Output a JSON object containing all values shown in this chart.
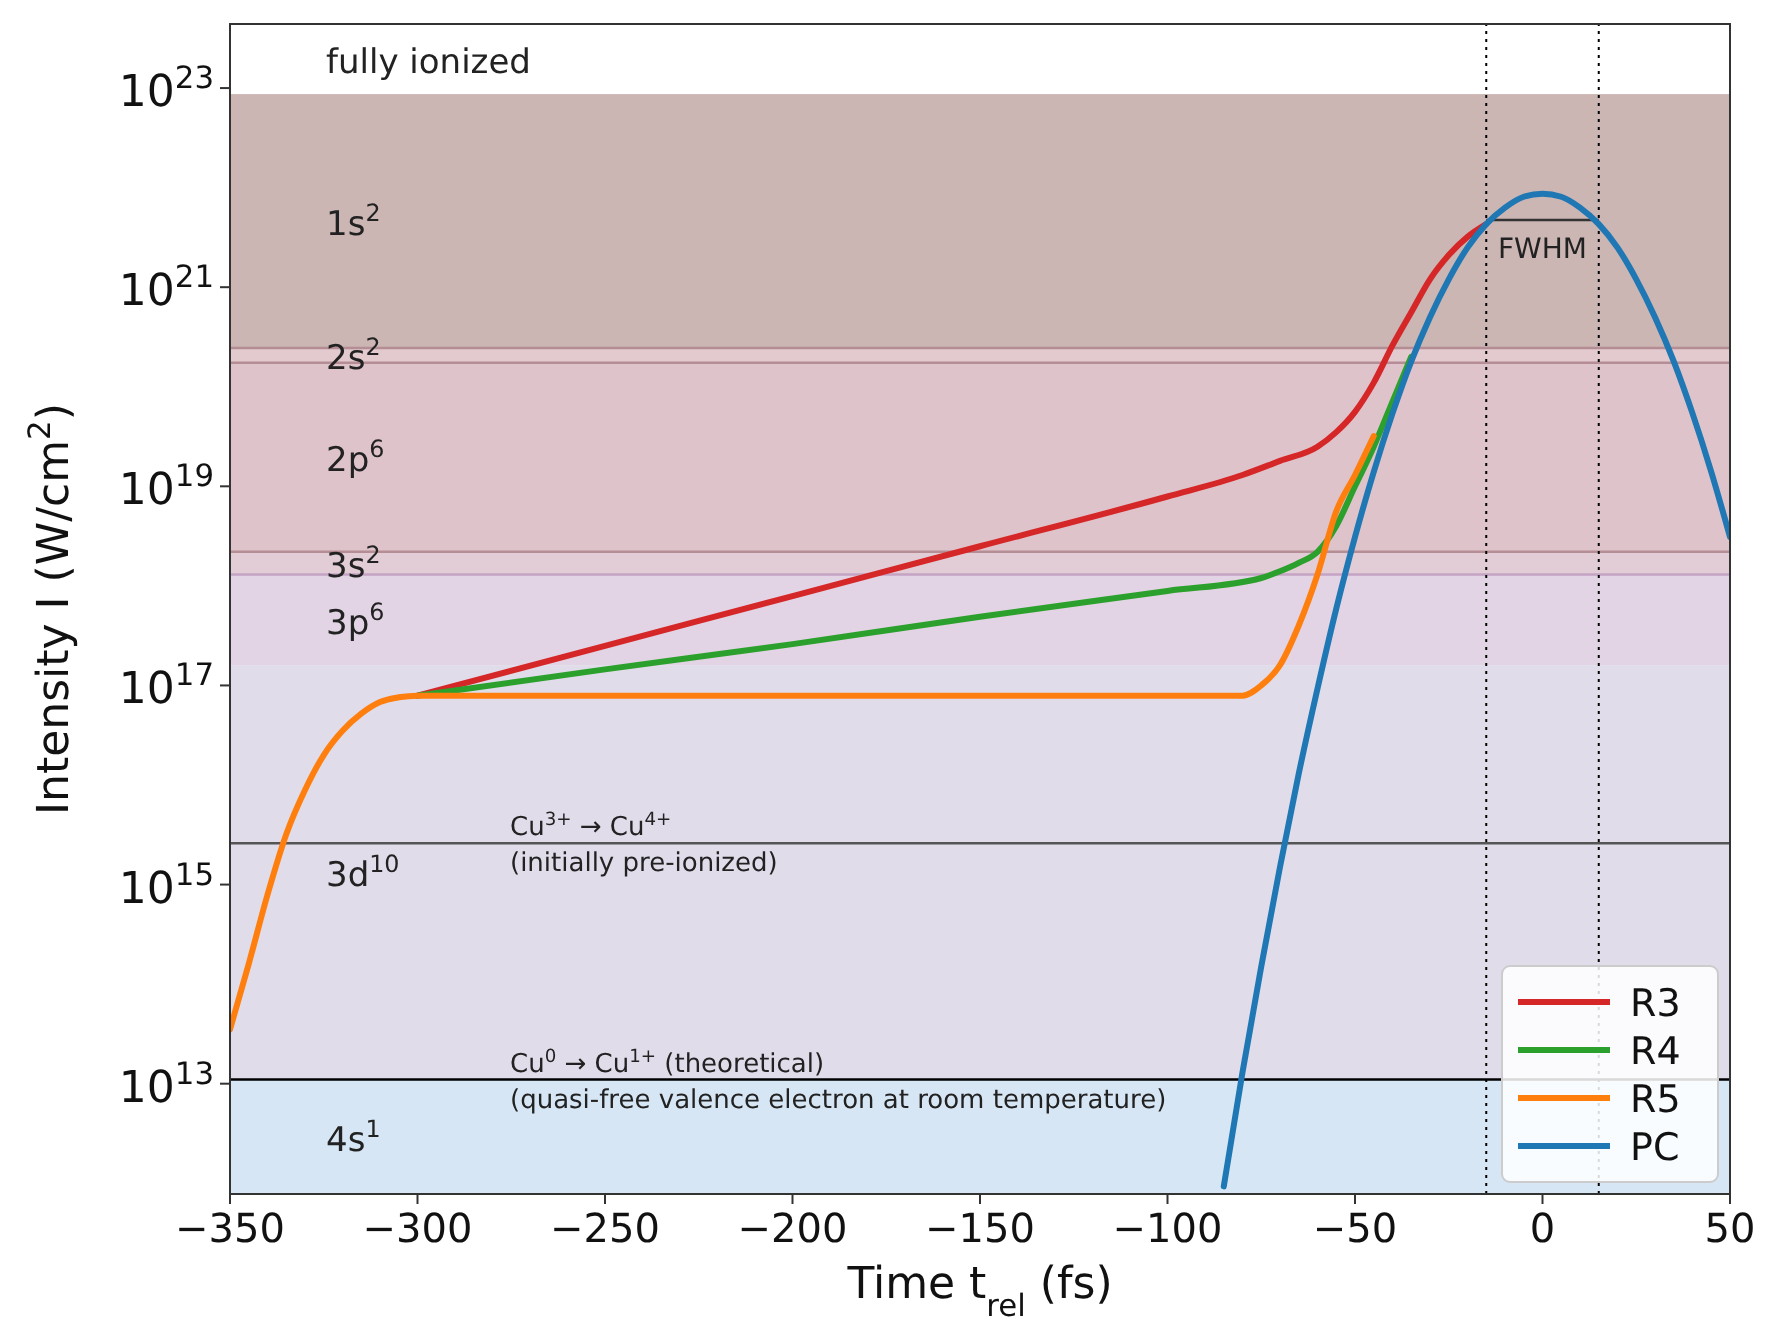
{
  "chart_data": {
    "type": "line",
    "xlabel": "Time t$_{rel}$ (fs)",
    "ylabel": "Intensity I (W/cm$^{2}$)",
    "log": "y",
    "grid": false,
    "legend": "bottom right",
    "line_style": "solid",
    "marker": "none",
    "xlim": [
      -350,
      50
    ],
    "ylim": [
      780000000000.0,
      4.4e+23
    ],
    "xticks": [
      {
        "value": -350,
        "label": "−350"
      },
      {
        "value": -300,
        "label": "−300"
      },
      {
        "value": -250,
        "label": "−250"
      },
      {
        "value": -200,
        "label": "−200"
      },
      {
        "value": -150,
        "label": "−150"
      },
      {
        "value": -100,
        "label": "−100"
      },
      {
        "value": -50,
        "label": "−50"
      },
      0,
      50
    ],
    "yticks": [
      {
        "value": 10000000000000.0,
        "label": "10$^{13}$"
      },
      {
        "value": 1000000000000000.0,
        "label": "10$^{15}$"
      },
      {
        "value": 1e+17,
        "label": "10$^{17}$"
      },
      {
        "value": 1e+19,
        "label": "10$^{19}$"
      },
      {
        "value": 1e+21,
        "label": "10$^{21}$"
      },
      {
        "value": 1e+23,
        "label": "10$^{23}$"
      }
    ],
    "bands": [
      {
        "axis": "y",
        "from": 2.45e+20,
        "to": 8.7e+22,
        "label": "1s$^{2}$",
        "color": "#cbb6b4"
      },
      {
        "axis": "y",
        "from": 1.74e+20,
        "to": 2.45e+20,
        "label": "2s$^{2}$",
        "color": "#e2cace"
      },
      {
        "axis": "y",
        "from": 2.2e+18,
        "to": 1.74e+20,
        "label": "2p$^{6}$",
        "color": "#dfc3ca"
      },
      {
        "axis": "y",
        "from": 1.3e+18,
        "to": 2.2e+18,
        "label": "3s$^{2}$",
        "color": "#e2cdd6"
      },
      {
        "axis": "y",
        "from": 1.6e+17,
        "to": 1.3e+18,
        "label": "3p$^{6}$",
        "color": "#e2d4e4"
      },
      {
        "axis": "y",
        "from": 11000000000000.0,
        "to": 1.6e+17,
        "label": "3d$^{10}$",
        "color": "#e0dcea"
      },
      {
        "axis": "y",
        "from": 780000000000.0,
        "to": 11000000000000.0,
        "label": "4s$^{1}$",
        "color": "#d7e6f5"
      }
    ],
    "ref_lines": [
      {
        "axis": "y",
        "value": 2.45e+20,
        "color": "#b58d95",
        "line_style": "solid"
      },
      {
        "axis": "y",
        "value": 1.74e+20,
        "color": "#b58d95",
        "line_style": "solid"
      },
      {
        "axis": "y",
        "value": 2.2e+18,
        "color": "#b58d95",
        "line_style": "solid"
      },
      {
        "axis": "y",
        "value": 1.3e+18,
        "color": "#c4a3c4",
        "line_style": "solid"
      },
      {
        "axis": "y",
        "value": 2600000000000000.0,
        "label": "Cu$^{3+}$ → Cu$^{4+}$\n(initially pre-ionized)",
        "color": "#555555",
        "line_style": "solid"
      },
      {
        "axis": "y",
        "value": 11000000000000.0,
        "label": "Cu$^{0}$  → Cu$^{1+}$ (theoretical)\n(quasi-free valence electron at room temperature)",
        "color": "#000000",
        "line_style": "solid"
      },
      {
        "axis": "x",
        "value": -15,
        "color": "#000000",
        "line_style": "dotted"
      },
      {
        "axis": "x",
        "value": 15,
        "color": "#000000",
        "line_style": "dotted"
      }
    ],
    "annotations": [
      "fully ionized",
      "FWHM"
    ],
    "series": [
      {
        "name": "R3",
        "color": "#d62728",
        "x": [
          -300,
          -250,
          -200,
          -150,
          -100,
          -80,
          -70,
          -60,
          -55,
          -50,
          -45,
          -40,
          -35,
          -30,
          -25,
          -20,
          -15
        ],
        "values": [
          7.9e+16,
          2.5e+17,
          7.9e+17,
          2.5e+18,
          7.9e+18,
          1.3e+19,
          1.8e+19,
          2.5e+19,
          3.5e+19,
          5.6e+19,
          1.1e+20,
          2.6e+20,
          5.6e+20,
          1.2e+21,
          2.1e+21,
          3.2e+21,
          4.3e+21
        ]
      },
      {
        "name": "R4",
        "color": "#2ca02c",
        "x": [
          -300,
          -250,
          -200,
          -150,
          -100,
          -75,
          -70,
          -65,
          -60,
          -55,
          -50,
          -45,
          -40,
          -35
        ],
        "values": [
          7.9e+16,
          1.45e+17,
          2.6e+17,
          4.9e+17,
          8.9e+17,
          1.2e+18,
          1.4e+18,
          1.7e+18,
          2.2e+18,
          4e+18,
          1e+19,
          2.5e+19,
          7.1e+19,
          2e+20
        ]
      },
      {
        "name": "R5",
        "color": "#ff7f0e",
        "x": [
          -350,
          -345,
          -340,
          -335,
          -330,
          -325,
          -320,
          -315,
          -310,
          -305,
          -300,
          -250,
          -200,
          -150,
          -100,
          -80,
          -75,
          -70,
          -65,
          -60,
          -55,
          -50,
          -45
        ],
        "values": [
          35000000000000.0,
          160000000000000.0,
          790000000000000.0,
          3200000000000000.0,
          8900000000000000.0,
          2e+16,
          3.5e+16,
          5.2e+16,
          6.8e+16,
          7.6e+16,
          7.9e+16,
          7.9e+16,
          7.9e+16,
          7.9e+16,
          7.9e+16,
          7.9e+16,
          1e+17,
          1.6e+17,
          4e+17,
          1.3e+18,
          5.6e+18,
          1.3e+19,
          3.2e+19
        ]
      },
      {
        "name": "PC",
        "color": "#1f77b4",
        "x": [
          -85,
          -80,
          -75,
          -70,
          -65,
          -60,
          -55,
          -50,
          -45,
          -40,
          -35,
          -30,
          -25,
          -20,
          -15,
          -10,
          -5,
          0,
          5,
          10,
          15,
          20,
          25,
          30,
          35,
          40,
          45,
          50
        ],
        "values": [
          930000000000.0,
          13000000000000.0,
          150000000000000.0,
          1500000000000000.0,
          1.3e+16,
          9.3e+16,
          5.9e+17,
          3.1e+18,
          1.4e+19,
          5.4e+19,
          1.8e+20,
          5e+20,
          1.2e+21,
          2.5e+21,
          4.3e+21,
          6.3e+21,
          8.1e+21,
          8.7e+21,
          8.1e+21,
          6.3e+21,
          4.3e+21,
          2.5e+21,
          1.2e+21,
          5e+20,
          1.8e+20,
          5.4e+19,
          1.4e+19,
          3.1e+18
        ]
      }
    ]
  }
}
